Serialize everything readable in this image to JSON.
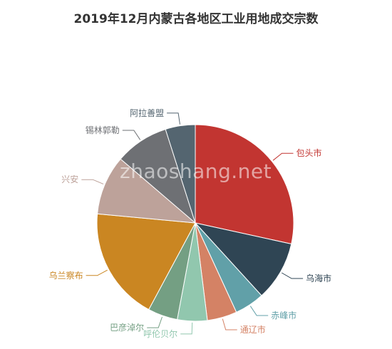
{
  "chart_data": {
    "type": "pie",
    "title": "2019年12月内蒙古各地区工业用地成交宗数",
    "slices": [
      {
        "label": "包头市",
        "value": 29,
        "color": "#c23531"
      },
      {
        "label": "乌海市",
        "value": 10,
        "color": "#2f4554"
      },
      {
        "label": "赤峰市",
        "value": 5,
        "color": "#61a0a8"
      },
      {
        "label": "通辽市",
        "value": 5,
        "color": "#d48265"
      },
      {
        "label": "呼伦贝尔",
        "value": 5,
        "color": "#91c7ae"
      },
      {
        "label": "巴彦淖尔",
        "value": 5,
        "color": "#749f83"
      },
      {
        "label": "乌兰察布",
        "value": 19,
        "color": "#ca8622"
      },
      {
        "label": "兴安",
        "value": 10,
        "color": "#bda29a"
      },
      {
        "label": "锡林郭勒",
        "value": 9,
        "color": "#6e7074"
      },
      {
        "label": "阿拉善盟",
        "value": 5,
        "color": "#546570"
      }
    ],
    "start_angle_deg": 90,
    "clockwise": true
  },
  "watermark": "zhaoshang.net"
}
